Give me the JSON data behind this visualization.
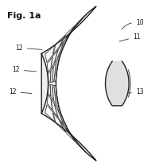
{
  "title": "Fig. 1a",
  "background": "#ffffff",
  "grid_rows": 6,
  "grid_cols": 4,
  "panel_fill": "#eeeeee",
  "cell_fill": "#f8f8f8",
  "cell_edge": "#444444",
  "outline_color": "#222222",
  "lens_fill": "#e0e0e0",
  "label_fs": 5.5,
  "title_fs": 8,
  "lw": 1.0
}
